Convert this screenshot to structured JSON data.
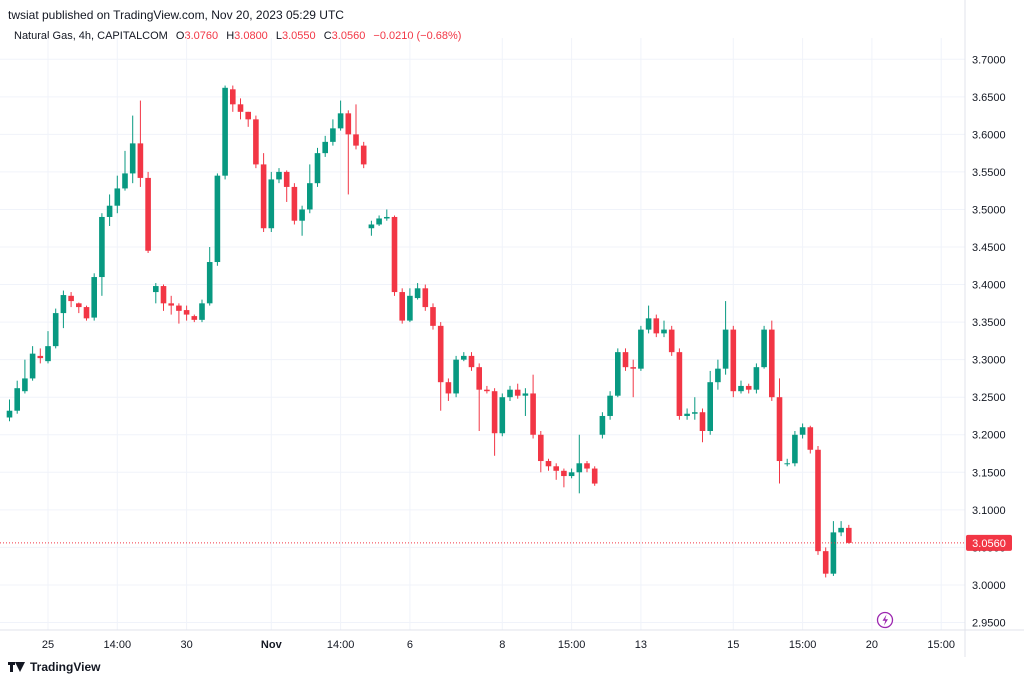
{
  "header": {
    "published_text": "twsiat published on TradingView.com, Nov 20, 2023 05:29 UTC"
  },
  "legend": {
    "symbol": "Natural Gas, 4h, CAPITALCOM",
    "o_label": "O",
    "o_value": "3.0760",
    "h_label": "H",
    "h_value": "3.0800",
    "l_label": "L",
    "l_value": "3.0550",
    "c_label": "C",
    "c_value": "3.0560",
    "change": "−0.0210 (−0.68%)"
  },
  "footer": {
    "brand": "TradingView"
  },
  "colors": {
    "up": "#089981",
    "down": "#f23645",
    "grid": "#f0f3fa",
    "text": "#131722",
    "lightning": "#9c27b0"
  },
  "chart_data": {
    "type": "candlestick",
    "title": "Natural Gas, 4h, CAPITALCOM",
    "ylim": [
      2.94,
      3.715
    ],
    "y_ticks": [
      "3.7000",
      "3.6500",
      "3.6000",
      "3.5500",
      "3.5000",
      "3.4500",
      "3.4000",
      "3.3500",
      "3.3000",
      "3.2500",
      "3.2000",
      "3.1500",
      "3.1000",
      "3.0500",
      "3.0000",
      "2.9500"
    ],
    "x_ticks": [
      {
        "label": "25",
        "index": 5
      },
      {
        "label": "14:00",
        "index": 14
      },
      {
        "label": "30",
        "index": 23
      },
      {
        "label": "Nov",
        "index": 34
      },
      {
        "label": "14:00",
        "index": 43
      },
      {
        "label": "6",
        "index": 52
      },
      {
        "label": "8",
        "index": 64
      },
      {
        "label": "15:00",
        "index": 73
      },
      {
        "label": "13",
        "index": 82
      },
      {
        "label": "15",
        "index": 94
      },
      {
        "label": "15:00",
        "index": 103
      },
      {
        "label": "20",
        "index": 112
      },
      {
        "label": "15:00",
        "index": 121
      }
    ],
    "last_price": "3.0560",
    "last_value": 3.056,
    "candles": [
      [
        3.223,
        3.232,
        3.247,
        3.218
      ],
      [
        3.232,
        3.262,
        3.272,
        3.228
      ],
      [
        3.258,
        3.275,
        3.3,
        3.255
      ],
      [
        3.275,
        3.308,
        3.318,
        3.272
      ],
      [
        3.305,
        3.302,
        3.315,
        3.295
      ],
      [
        3.298,
        3.318,
        3.338,
        3.295
      ],
      [
        3.318,
        3.362,
        3.368,
        3.315
      ],
      [
        3.362,
        3.386,
        3.392,
        3.342
      ],
      [
        3.385,
        3.378,
        3.39,
        3.37
      ],
      [
        3.375,
        3.37,
        3.376,
        3.362
      ],
      [
        3.37,
        3.355,
        3.372,
        3.352
      ],
      [
        3.356,
        3.41,
        3.415,
        3.352
      ],
      [
        3.41,
        3.49,
        3.495,
        3.385
      ],
      [
        3.49,
        3.505,
        3.52,
        3.478
      ],
      [
        3.505,
        3.528,
        3.545,
        3.495
      ],
      [
        3.528,
        3.548,
        3.578,
        3.525
      ],
      [
        3.548,
        3.588,
        3.625,
        3.535
      ],
      [
        3.588,
        3.542,
        3.645,
        3.53
      ],
      [
        3.542,
        3.445,
        3.55,
        3.442
      ],
      [
        3.39,
        3.398,
        3.402,
        3.375
      ],
      [
        3.398,
        3.375,
        3.4,
        3.365
      ],
      [
        3.375,
        3.372,
        3.385,
        3.36
      ],
      [
        3.372,
        3.365,
        3.375,
        3.348
      ],
      [
        3.366,
        3.36,
        3.372,
        3.352
      ],
      [
        3.358,
        3.353,
        3.36,
        3.35
      ],
      [
        3.353,
        3.375,
        3.38,
        3.35
      ],
      [
        3.375,
        3.43,
        3.45,
        3.372
      ],
      [
        3.43,
        3.545,
        3.548,
        3.425
      ],
      [
        3.545,
        3.662,
        3.665,
        3.54
      ],
      [
        3.66,
        3.64,
        3.665,
        3.63
      ],
      [
        3.64,
        3.63,
        3.648,
        3.62
      ],
      [
        3.63,
        3.62,
        3.63,
        3.61
      ],
      [
        3.62,
        3.56,
        3.625,
        3.555
      ],
      [
        3.56,
        3.475,
        3.575,
        3.47
      ],
      [
        3.475,
        3.54,
        3.55,
        3.47
      ],
      [
        3.54,
        3.55,
        3.555,
        3.535
      ],
      [
        3.55,
        3.53,
        3.552,
        3.51
      ],
      [
        3.53,
        3.485,
        3.535,
        3.48
      ],
      [
        3.485,
        3.5,
        3.505,
        3.465
      ],
      [
        3.5,
        3.535,
        3.56,
        3.495
      ],
      [
        3.535,
        3.575,
        3.582,
        3.53
      ],
      [
        3.575,
        3.59,
        3.598,
        3.57
      ],
      [
        3.59,
        3.608,
        3.62,
        3.585
      ],
      [
        3.608,
        3.628,
        3.645,
        3.605
      ],
      [
        3.628,
        3.6,
        3.632,
        3.52
      ],
      [
        3.6,
        3.585,
        3.64,
        3.58
      ],
      [
        3.585,
        3.56,
        3.59,
        3.555
      ],
      [
        3.475,
        3.48,
        3.485,
        3.465
      ],
      [
        3.48,
        3.488,
        3.492,
        3.478
      ],
      [
        3.488,
        3.49,
        3.5,
        3.485
      ],
      [
        3.49,
        3.39,
        3.492,
        3.385
      ],
      [
        3.39,
        3.352,
        3.395,
        3.348
      ],
      [
        3.352,
        3.385,
        3.395,
        3.35
      ],
      [
        3.382,
        3.395,
        3.402,
        3.38
      ],
      [
        3.395,
        3.37,
        3.4,
        3.365
      ],
      [
        3.37,
        3.345,
        3.375,
        3.34
      ],
      [
        3.345,
        3.27,
        3.35,
        3.232
      ],
      [
        3.27,
        3.255,
        3.275,
        3.245
      ],
      [
        3.255,
        3.3,
        3.305,
        3.25
      ],
      [
        3.3,
        3.305,
        3.31,
        3.298
      ],
      [
        3.305,
        3.29,
        3.31,
        3.285
      ],
      [
        3.29,
        3.26,
        3.295,
        3.205
      ],
      [
        3.26,
        3.258,
        3.265,
        3.255
      ],
      [
        3.258,
        3.202,
        3.262,
        3.172
      ],
      [
        3.202,
        3.25,
        3.255,
        3.198
      ],
      [
        3.25,
        3.26,
        3.265,
        3.245
      ],
      [
        3.26,
        3.252,
        3.268,
        3.248
      ],
      [
        3.252,
        3.255,
        3.262,
        3.225
      ],
      [
        3.255,
        3.2,
        3.28,
        3.195
      ],
      [
        3.2,
        3.165,
        3.205,
        3.15
      ],
      [
        3.165,
        3.158,
        3.168,
        3.152
      ],
      [
        3.158,
        3.152,
        3.162,
        3.14
      ],
      [
        3.152,
        3.145,
        3.155,
        3.13
      ],
      [
        3.145,
        3.15,
        3.155,
        3.142
      ],
      [
        3.15,
        3.162,
        3.2,
        3.122
      ],
      [
        3.162,
        3.155,
        3.165,
        3.15
      ],
      [
        3.155,
        3.135,
        3.158,
        3.132
      ],
      [
        3.2,
        3.225,
        3.23,
        3.195
      ],
      [
        3.225,
        3.252,
        3.258,
        3.22
      ],
      [
        3.252,
        3.31,
        3.315,
        3.25
      ],
      [
        3.31,
        3.29,
        3.315,
        3.285
      ],
      [
        3.29,
        3.288,
        3.3,
        3.25
      ],
      [
        3.288,
        3.34,
        3.345,
        3.285
      ],
      [
        3.34,
        3.355,
        3.372,
        3.335
      ],
      [
        3.355,
        3.335,
        3.36,
        3.33
      ],
      [
        3.335,
        3.34,
        3.352,
        3.33
      ],
      [
        3.34,
        3.31,
        3.345,
        3.305
      ],
      [
        3.31,
        3.225,
        3.315,
        3.22
      ],
      [
        3.225,
        3.228,
        3.235,
        3.22
      ],
      [
        3.228,
        3.23,
        3.25,
        3.22
      ],
      [
        3.23,
        3.205,
        3.235,
        3.19
      ],
      [
        3.205,
        3.27,
        3.285,
        3.2
      ],
      [
        3.27,
        3.288,
        3.3,
        3.26
      ],
      [
        3.288,
        3.34,
        3.378,
        3.28
      ],
      [
        3.34,
        3.258,
        3.345,
        3.25
      ],
      [
        3.258,
        3.265,
        3.272,
        3.255
      ],
      [
        3.265,
        3.26,
        3.268,
        3.255
      ],
      [
        3.26,
        3.29,
        3.295,
        3.255
      ],
      [
        3.29,
        3.34,
        3.345,
        3.288
      ],
      [
        3.34,
        3.25,
        3.352,
        3.245
      ],
      [
        3.25,
        3.165,
        3.275,
        3.135
      ],
      [
        3.162,
        3.162,
        3.168,
        3.158
      ],
      [
        3.162,
        3.2,
        3.205,
        3.158
      ],
      [
        3.2,
        3.21,
        3.215,
        3.195
      ],
      [
        3.21,
        3.18,
        3.212,
        3.175
      ],
      [
        3.18,
        3.045,
        3.185,
        3.04
      ],
      [
        3.045,
        3.015,
        3.05,
        3.01
      ],
      [
        3.015,
        3.07,
        3.085,
        3.012
      ],
      [
        3.07,
        3.076,
        3.085,
        3.065
      ],
      [
        3.076,
        3.056,
        3.08,
        3.055
      ]
    ]
  },
  "lightning_icon": "lightning-icon"
}
